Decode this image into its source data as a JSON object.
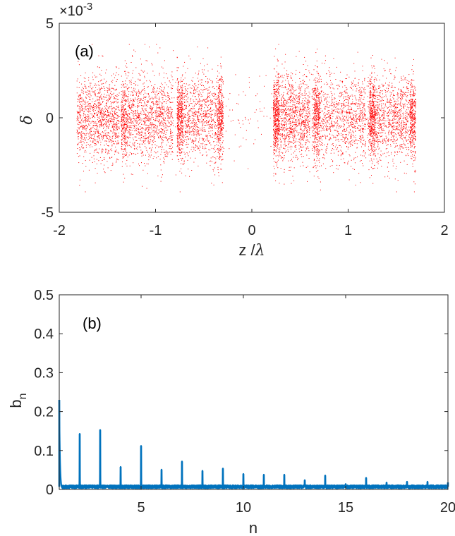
{
  "chart_data": [
    {
      "id": "a",
      "type": "scatter",
      "panel_label": "(a)",
      "xlabel_main": "z /",
      "xlabel_symbol": "λ",
      "ylabel": "δ",
      "exponent_base": "×10",
      "exponent_power": "-3",
      "xlim": [
        -2,
        2
      ],
      "ylim": [
        -5,
        5
      ],
      "x_ticks": [
        "-2",
        "-1",
        "0",
        "1",
        "2"
      ],
      "x_tick_values": [
        -2,
        -1,
        0,
        1,
        2
      ],
      "y_ticks": [
        "-5",
        "0",
        "5"
      ],
      "y_tick_values": [
        -5,
        0,
        5
      ],
      "grid": false,
      "color": "#ff0000",
      "point_count_estimate": 30000,
      "x_range_of_points": [
        -1.82,
        1.68
      ],
      "y_spread_typical": [
        -2.5,
        2.5
      ],
      "dense_columns_at_x": [
        -1.33,
        -0.75,
        -0.33,
        0.25,
        0.67,
        1.25,
        1.67
      ]
    },
    {
      "id": "b",
      "type": "line",
      "panel_label": "(b)",
      "xlabel": "n",
      "ylabel_main": "b",
      "ylabel_sub": "n",
      "xlim": [
        1,
        20
      ],
      "ylim": [
        0,
        0.5
      ],
      "x_ticks": [
        "5",
        "10",
        "15",
        "20"
      ],
      "x_tick_values": [
        5,
        10,
        15,
        20
      ],
      "y_ticks": [
        "0",
        "0.1",
        "0.2",
        "0.3",
        "0.4",
        "0.5"
      ],
      "y_tick_values": [
        0,
        0.1,
        0.2,
        0.3,
        0.4,
        0.5
      ],
      "grid": false,
      "color": "#0072bd",
      "baseline": 0.007,
      "peaks": [
        {
          "n": 1,
          "value": 0.23
        },
        {
          "n": 2,
          "value": 0.143
        },
        {
          "n": 3,
          "value": 0.153
        },
        {
          "n": 4,
          "value": 0.058
        },
        {
          "n": 5,
          "value": 0.112
        },
        {
          "n": 6,
          "value": 0.051
        },
        {
          "n": 7,
          "value": 0.072
        },
        {
          "n": 8,
          "value": 0.048
        },
        {
          "n": 9,
          "value": 0.054
        },
        {
          "n": 10,
          "value": 0.04
        },
        {
          "n": 11,
          "value": 0.038
        },
        {
          "n": 12,
          "value": 0.038
        },
        {
          "n": 13,
          "value": 0.024
        },
        {
          "n": 14,
          "value": 0.036
        },
        {
          "n": 15,
          "value": 0.014
        },
        {
          "n": 16,
          "value": 0.03
        },
        {
          "n": 17,
          "value": 0.018
        },
        {
          "n": 18,
          "value": 0.02
        },
        {
          "n": 19,
          "value": 0.02
        },
        {
          "n": 20,
          "value": 0.018
        }
      ]
    }
  ]
}
